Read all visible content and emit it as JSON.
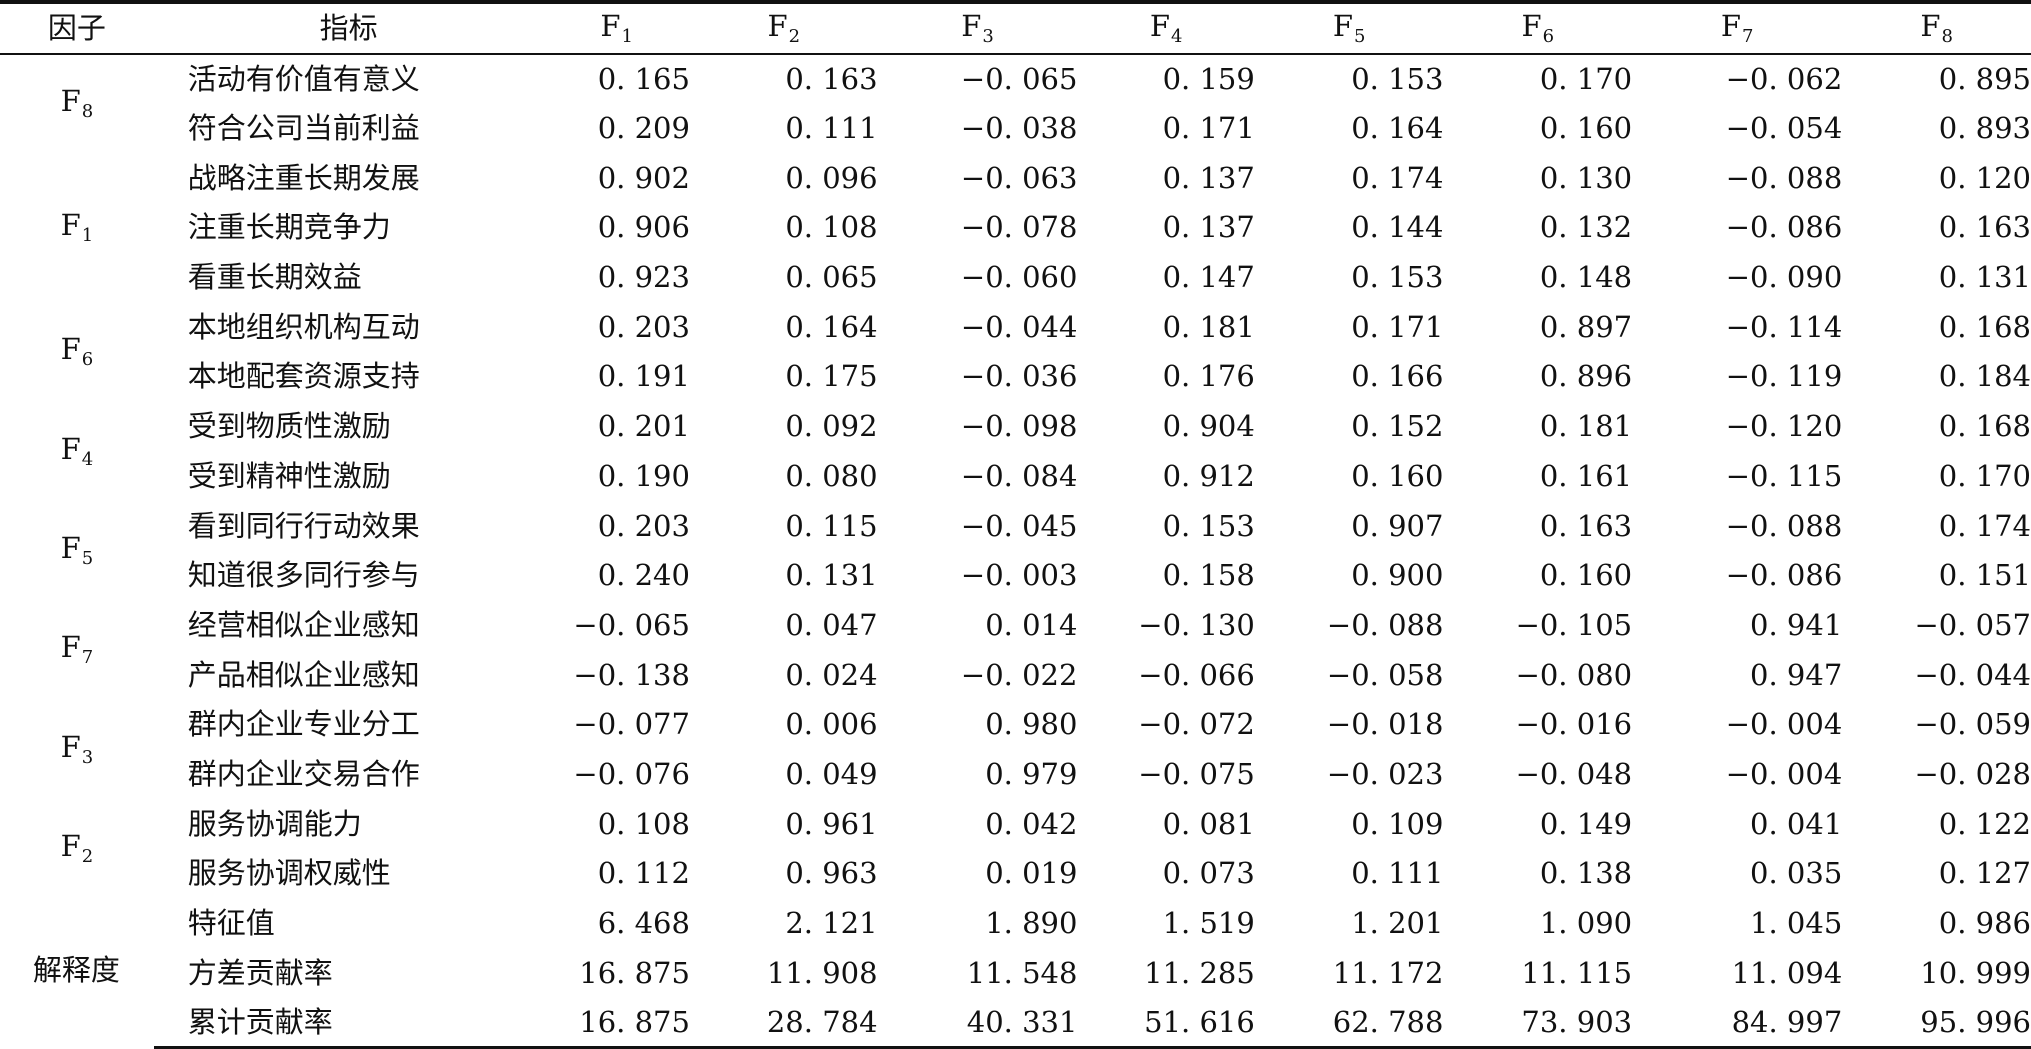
{
  "table": {
    "header": {
      "factor": "因子",
      "indicator": "指标",
      "columns": [
        {
          "main": "F",
          "sub": "1"
        },
        {
          "main": "F",
          "sub": "2"
        },
        {
          "main": "F",
          "sub": "3"
        },
        {
          "main": "F",
          "sub": "4"
        },
        {
          "main": "F",
          "sub": "5"
        },
        {
          "main": "F",
          "sub": "6"
        },
        {
          "main": "F",
          "sub": "7"
        },
        {
          "main": "F",
          "sub": "8"
        }
      ]
    },
    "groups": [
      {
        "factor_main": "F",
        "factor_sub": "8",
        "rows": [
          {
            "indicator": "活动有价值有意义",
            "values": [
              "0. 165",
              "0. 163",
              "−0. 065",
              "0. 159",
              "0. 153",
              "0. 170",
              "−0. 062",
              "0. 895"
            ]
          },
          {
            "indicator": "符合公司当前利益",
            "values": [
              "0. 209",
              "0. 111",
              "−0. 038",
              "0. 171",
              "0. 164",
              "0. 160",
              "−0. 054",
              "0. 893"
            ]
          }
        ]
      },
      {
        "factor_main": "F",
        "factor_sub": "1",
        "rows": [
          {
            "indicator": "战略注重长期发展",
            "values": [
              "0. 902",
              "0. 096",
              "−0. 063",
              "0. 137",
              "0. 174",
              "0. 130",
              "−0. 088",
              "0. 120"
            ]
          },
          {
            "indicator": "注重长期竞争力",
            "values": [
              "0. 906",
              "0. 108",
              "−0. 078",
              "0. 137",
              "0. 144",
              "0. 132",
              "−0. 086",
              "0. 163"
            ]
          },
          {
            "indicator": "看重长期效益",
            "values": [
              "0. 923",
              "0. 065",
              "−0. 060",
              "0. 147",
              "0. 153",
              "0. 148",
              "−0. 090",
              "0. 131"
            ]
          }
        ]
      },
      {
        "factor_main": "F",
        "factor_sub": "6",
        "rows": [
          {
            "indicator": "本地组织机构互动",
            "values": [
              "0. 203",
              "0. 164",
              "−0. 044",
              "0. 181",
              "0. 171",
              "0. 897",
              "−0. 114",
              "0. 168"
            ]
          },
          {
            "indicator": "本地配套资源支持",
            "values": [
              "0. 191",
              "0. 175",
              "−0. 036",
              "0. 176",
              "0. 166",
              "0. 896",
              "−0. 119",
              "0. 184"
            ]
          }
        ]
      },
      {
        "factor_main": "F",
        "factor_sub": "4",
        "rows": [
          {
            "indicator": "受到物质性激励",
            "values": [
              "0. 201",
              "0. 092",
              "−0. 098",
              "0. 904",
              "0. 152",
              "0. 181",
              "−0. 120",
              "0. 168"
            ]
          },
          {
            "indicator": "受到精神性激励",
            "values": [
              "0. 190",
              "0. 080",
              "−0. 084",
              "0. 912",
              "0. 160",
              "0. 161",
              "−0. 115",
              "0. 170"
            ]
          }
        ]
      },
      {
        "factor_main": "F",
        "factor_sub": "5",
        "rows": [
          {
            "indicator": "看到同行行动效果",
            "values": [
              "0. 203",
              "0. 115",
              "−0. 045",
              "0. 153",
              "0. 907",
              "0. 163",
              "−0. 088",
              "0. 174"
            ]
          },
          {
            "indicator": "知道很多同行参与",
            "values": [
              "0. 240",
              "0. 131",
              "−0. 003",
              "0. 158",
              "0. 900",
              "0. 160",
              "−0. 086",
              "0. 151"
            ]
          }
        ]
      },
      {
        "factor_main": "F",
        "factor_sub": "7",
        "rows": [
          {
            "indicator": "经营相似企业感知",
            "values": [
              "−0. 065",
              "0. 047",
              "0. 014",
              "−0. 130",
              "−0. 088",
              "−0. 105",
              "0. 941",
              "−0. 057"
            ]
          },
          {
            "indicator": "产品相似企业感知",
            "values": [
              "−0. 138",
              "0. 024",
              "−0. 022",
              "−0. 066",
              "−0. 058",
              "−0. 080",
              "0. 947",
              "−0. 044"
            ]
          }
        ]
      },
      {
        "factor_main": "F",
        "factor_sub": "3",
        "rows": [
          {
            "indicator": "群内企业专业分工",
            "values": [
              "−0. 077",
              "0. 006",
              "0. 980",
              "−0. 072",
              "−0. 018",
              "−0. 016",
              "−0. 004",
              "−0. 059"
            ]
          },
          {
            "indicator": "群内企业交易合作",
            "values": [
              "−0. 076",
              "0. 049",
              "0. 979",
              "−0. 075",
              "−0. 023",
              "−0. 048",
              "−0. 004",
              "−0. 028"
            ]
          }
        ]
      },
      {
        "factor_main": "F",
        "factor_sub": "2",
        "rows": [
          {
            "indicator": "服务协调能力",
            "values": [
              "0. 108",
              "0. 961",
              "0. 042",
              "0. 081",
              "0. 109",
              "0. 149",
              "0. 041",
              "0. 122"
            ]
          },
          {
            "indicator": "服务协调权威性",
            "values": [
              "0. 112",
              "0. 963",
              "0. 019",
              "0. 073",
              "0. 111",
              "0. 138",
              "0. 035",
              "0. 127"
            ]
          }
        ]
      },
      {
        "factor_main": "解释度",
        "factor_sub": "",
        "rows": [
          {
            "indicator": "特征值",
            "values": [
              "6. 468",
              "2. 121",
              "1. 890",
              "1. 519",
              "1. 201",
              "1. 090",
              "1. 045",
              "0. 986"
            ]
          },
          {
            "indicator": "方差贡献率",
            "values": [
              "16. 875",
              "11. 908",
              "11. 548",
              "11. 285",
              "11. 172",
              "11. 115",
              "11. 094",
              "10. 999"
            ]
          },
          {
            "indicator": "累计贡献率",
            "values": [
              "16. 875",
              "28. 784",
              "40. 331",
              "51. 616",
              "62. 788",
              "73. 903",
              "84. 997",
              "95. 996"
            ]
          }
        ]
      }
    ]
  }
}
